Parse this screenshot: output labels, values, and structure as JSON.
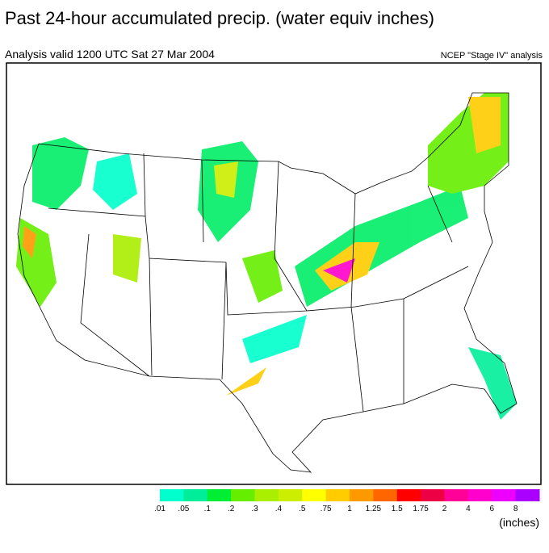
{
  "header": {
    "title": "Past 24-hour accumulated precip. (water equiv inches)",
    "subtitle": "Analysis valid 1200 UTC  Sat 27 Mar 2004",
    "source": "NCEP \"Stage IV\" analysis"
  },
  "legend": {
    "labels": [
      ".01",
      ".05",
      ".1",
      ".2",
      ".3",
      ".4",
      ".5",
      ".75",
      "1",
      "1.25",
      "1.5",
      "1.75",
      "2",
      "4",
      "6",
      "8"
    ],
    "colors": [
      "#00ffcc",
      "#00ee99",
      "#00ee33",
      "#66ee00",
      "#aaee00",
      "#ccee00",
      "#ffff00",
      "#ffcc00",
      "#ff9900",
      "#ff6600",
      "#ff0000",
      "#ee0044",
      "#ff0099",
      "#ff00cc",
      "#ee00ff",
      "#aa00ff"
    ],
    "unit": "(inches)"
  }
}
